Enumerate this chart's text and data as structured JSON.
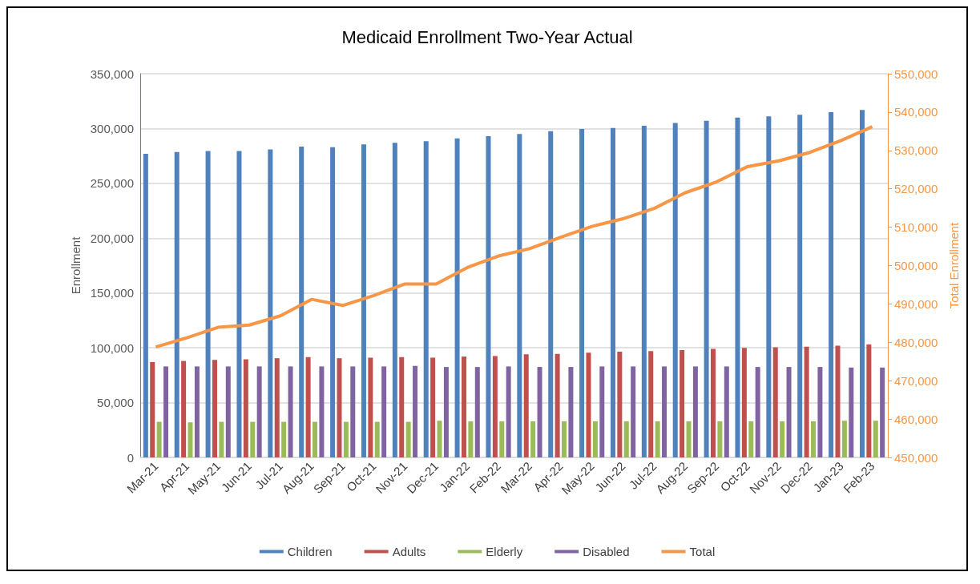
{
  "chart_data": {
    "type": "bar",
    "title": "Medicaid Enrollment Two-Year Actual",
    "ylabel": "Enrollment",
    "y2label": "Total Enrollment",
    "categories": [
      "Mar-21",
      "Apr-21",
      "May-21",
      "Jun-21",
      "Jul-21",
      "Aug-21",
      "Sep-21",
      "Oct-21",
      "Nov-21",
      "Dec-21",
      "Jan-22",
      "Feb-22",
      "Mar-22",
      "Apr-22",
      "May-22",
      "Jun-22",
      "Jul-22",
      "Aug-22",
      "Sep-22",
      "Oct-22",
      "Nov-22",
      "Dec-22",
      "Jan-23",
      "Feb-23"
    ],
    "series": [
      {
        "name": "Children",
        "color": "#4f81bd",
        "values": [
          277000,
          278500,
          279500,
          279500,
          281000,
          283500,
          283000,
          285500,
          287000,
          288500,
          291000,
          293000,
          295000,
          297500,
          299500,
          300500,
          302500,
          305000,
          307000,
          310000,
          311000,
          312500,
          315000,
          317000
        ]
      },
      {
        "name": "Adults",
        "color": "#c0504d",
        "values": [
          87000,
          88000,
          89000,
          89500,
          90500,
          91500,
          90500,
          91000,
          91500,
          91000,
          92000,
          92500,
          94000,
          94500,
          95500,
          96500,
          97000,
          98000,
          99000,
          100000,
          100500,
          101000,
          102000,
          103000
        ]
      },
      {
        "name": "Elderly",
        "color": "#9bbb59",
        "values": [
          32500,
          32000,
          32500,
          32500,
          32500,
          32500,
          32500,
          32500,
          32500,
          33500,
          33000,
          33000,
          33000,
          33000,
          33000,
          33000,
          33000,
          33000,
          33000,
          33000,
          33000,
          33000,
          33500,
          33500
        ]
      },
      {
        "name": "Disabled",
        "color": "#8064a2",
        "values": [
          83000,
          83000,
          83000,
          83000,
          83000,
          83000,
          83000,
          83000,
          83500,
          82500,
          82500,
          83000,
          82500,
          82500,
          83000,
          83000,
          83000,
          83000,
          83000,
          82500,
          82500,
          82500,
          82000,
          82000
        ]
      },
      {
        "name": "Total",
        "color": "#f79646",
        "type": "line",
        "axis": "y2",
        "values": [
          478800,
          481200,
          483900,
          484500,
          486900,
          491200,
          489600,
          492200,
          495200,
          495200,
          499500,
          502500,
          504400,
          507400,
          510200,
          512200,
          514900,
          519000,
          521800,
          525800,
          527300,
          529500,
          532600,
          536200
        ]
      }
    ],
    "ylim": [
      0,
      350000
    ],
    "yticks": [
      0,
      {
        "value": 50000,
        "label": "50,000"
      },
      {
        "value": 100000,
        "label": "100,000"
      },
      {
        "value": 150000,
        "label": "150,000"
      },
      {
        "value": 200000,
        "label": "200,000"
      },
      {
        "value": 250000,
        "label": "250,000"
      },
      {
        "value": 300000,
        "label": "300,000"
      },
      {
        "value": 350000,
        "label": "350,000"
      }
    ],
    "y2lim": [
      450000,
      550000
    ],
    "y2ticks": [
      {
        "value": 450000,
        "label": "450,000"
      },
      {
        "value": 460000,
        "label": "460,000"
      },
      {
        "value": 470000,
        "label": "470,000"
      },
      {
        "value": 480000,
        "label": "480,000"
      },
      {
        "value": 490000,
        "label": "490,000"
      },
      {
        "value": 500000,
        "label": "500,000"
      },
      {
        "value": 510000,
        "label": "510,000"
      },
      {
        "value": 520000,
        "label": "520,000"
      },
      {
        "value": 530000,
        "label": "530,000"
      },
      {
        "value": 540000,
        "label": "540,000"
      },
      {
        "value": 550000,
        "label": "550,000"
      }
    ],
    "grid": "y",
    "legend": "bottom",
    "marker": "none"
  }
}
